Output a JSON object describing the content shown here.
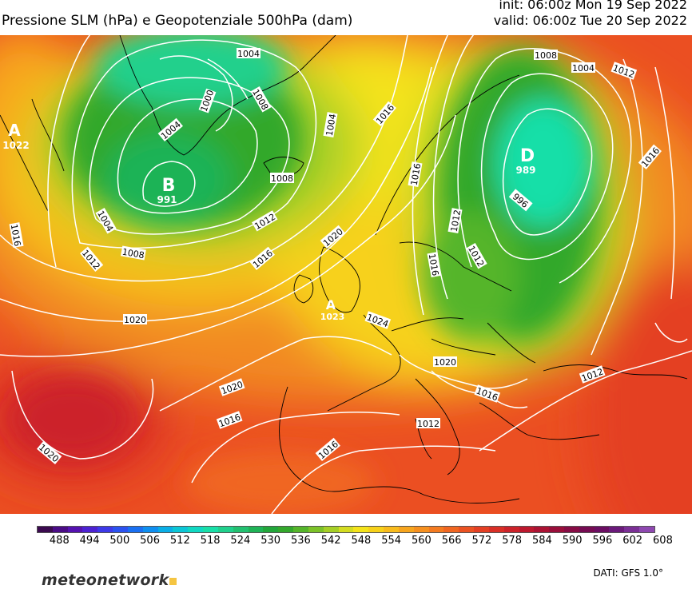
{
  "header": {
    "title": "Pressione SLM (hPa) e Geopotenziale 500hPa (dam)",
    "init": "init: 06:00z Mon 19 Sep 2022",
    "valid": "valid: 06:00z Tue 20 Sep 2022"
  },
  "map": {
    "pressure_centers": [
      {
        "type": "B",
        "value": "991"
      },
      {
        "type": "D",
        "value": "989"
      },
      {
        "type": "A",
        "value": "1022"
      },
      {
        "type": "A",
        "value": "1023"
      }
    ],
    "isobar_labels": [
      "1004",
      "1000",
      "1008",
      "1004",
      "1004",
      "1008",
      "1012",
      "1016",
      "1004",
      "1012",
      "1008",
      "1016",
      "1020",
      "1020",
      "1024",
      "1020",
      "1016",
      "1012",
      "1016",
      "1012",
      "1016",
      "1020",
      "1012",
      "1016",
      "1020",
      "1016",
      "1008",
      "1012",
      "1004",
      "996",
      "1012",
      "1016",
      "1016",
      "1020",
      "1024",
      "1016"
    ]
  },
  "colorbar": {
    "colors": [
      "#3b0a4f",
      "#4a0c86",
      "#5512b0",
      "#4c22d2",
      "#3d39e8",
      "#2b52f0",
      "#1a70f2",
      "#0f8ff0",
      "#0aaee6",
      "#0bc6d6",
      "#10d8c2",
      "#18dfa8",
      "#20d08c",
      "#22c070",
      "#1fb356",
      "#22a63a",
      "#33a82c",
      "#55b52a",
      "#7cc228",
      "#a6cf26",
      "#d4dc20",
      "#f4e31a",
      "#f7d11a",
      "#f8bb1c",
      "#f7a51e",
      "#f6901f",
      "#f47b20",
      "#f06621",
      "#eb5222",
      "#e43f23",
      "#d92f26",
      "#cc2229",
      "#bd182e",
      "#ab1233",
      "#990e3a",
      "#860b44",
      "#750b52",
      "#6a0d62",
      "#6a1a7a",
      "#7a2f95",
      "#8e48b0"
    ],
    "ticks": [
      "488",
      "494",
      "500",
      "506",
      "512",
      "518",
      "524",
      "530",
      "536",
      "542",
      "548",
      "554",
      "560",
      "566",
      "572",
      "578",
      "584",
      "590",
      "596",
      "602",
      "608"
    ]
  },
  "footer": {
    "logo": "meteonetwork",
    "source": "DATI:  GFS  1.0°"
  }
}
